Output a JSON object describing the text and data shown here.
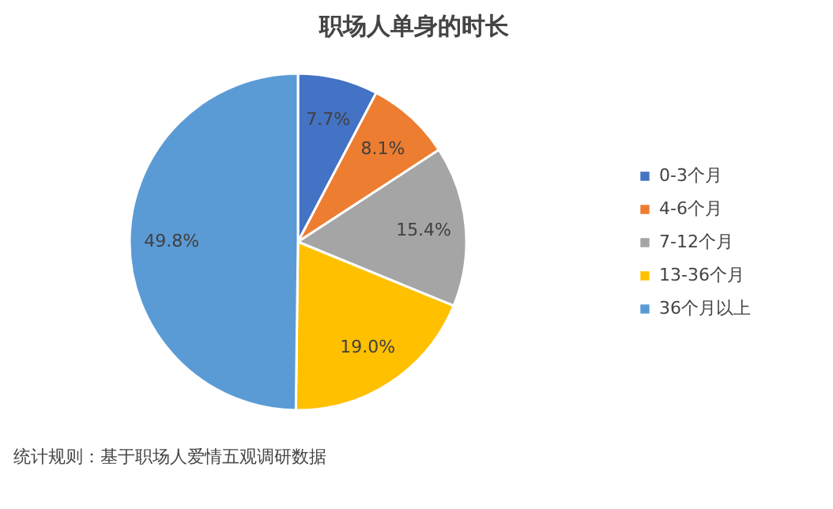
{
  "chart_data": {
    "type": "pie",
    "title": "职场人单身的时长",
    "categories": [
      "0-3个月",
      "4-6个月",
      "7-12个月",
      "13-36个月",
      "36个月以上"
    ],
    "values": [
      7.7,
      8.1,
      15.4,
      19.0,
      49.8
    ],
    "colors": [
      "#4472c4",
      "#ed7d31",
      "#a5a5a5",
      "#ffc000",
      "#5b9bd5"
    ],
    "value_labels": [
      "7.7%",
      "8.1%",
      "15.4%",
      "19.0%",
      "49.8%"
    ],
    "legend": "right",
    "annotations": [
      "统计规则：基于职场人爱情五观调研数据"
    ]
  }
}
